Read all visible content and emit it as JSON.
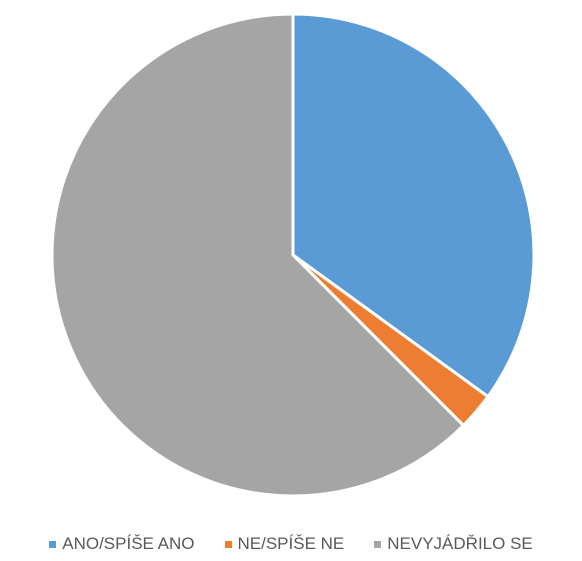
{
  "chart_data": {
    "type": "pie",
    "title": "",
    "start_angle_deg": 0,
    "direction": "clockwise",
    "slices": [
      {
        "label": "ANO/SPÍŠE ANO",
        "value": 35,
        "color": "#5B9BD5"
      },
      {
        "label": "NE/SPÍŠE NE",
        "value": 2.5,
        "color": "#ED7D31"
      },
      {
        "label": "NEVYJÁDŘILO SE",
        "value": 62.5,
        "color": "#A5A5A5"
      }
    ],
    "legend_position": "bottom"
  }
}
